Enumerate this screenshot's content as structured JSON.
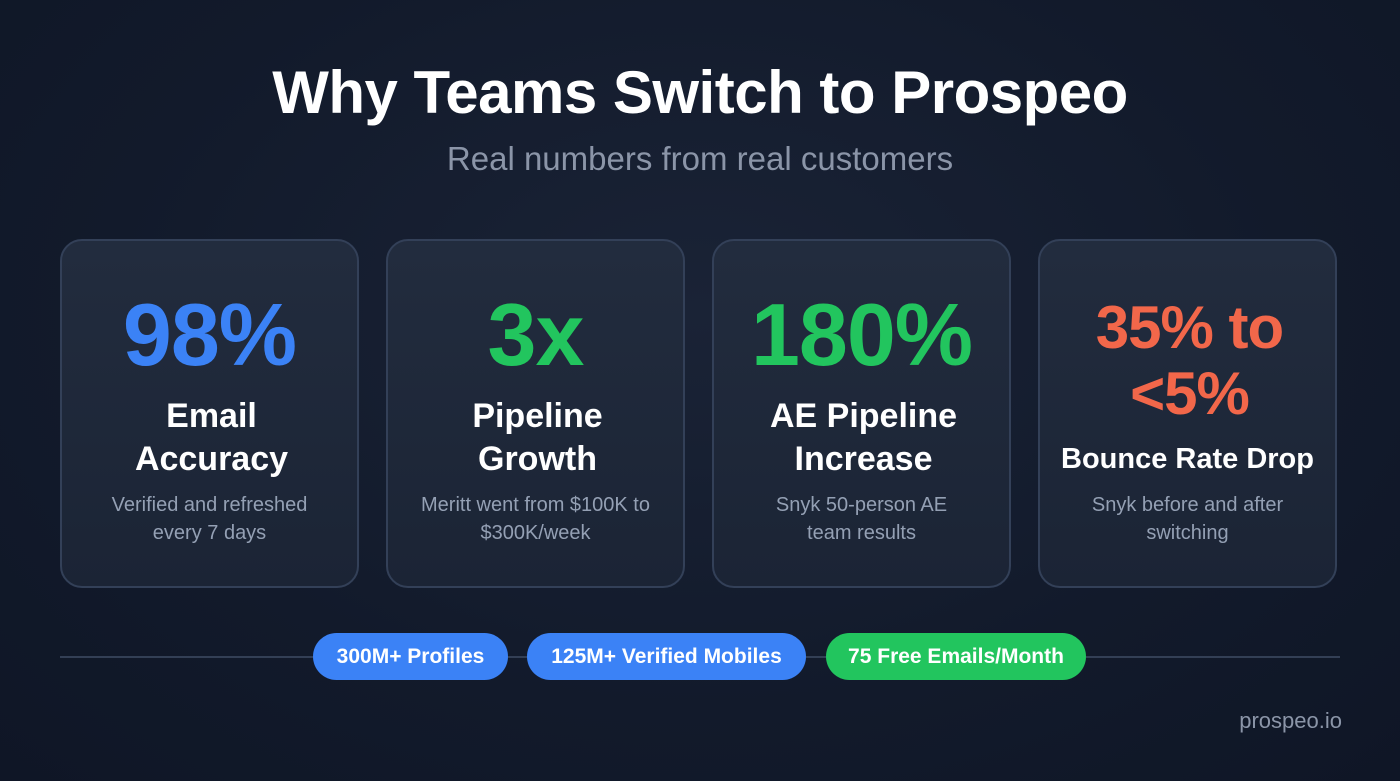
{
  "header": {
    "title": "Why Teams Switch to Prospeo",
    "subtitle": "Real numbers from real customers"
  },
  "colors": {
    "blue": "#3b82f6",
    "green": "#22c55e",
    "orange": "#f2674a"
  },
  "cards": [
    {
      "value": "98%",
      "label": "Email Accuracy",
      "desc": "Verified and refreshed every 7 days",
      "color": "#3b82f6"
    },
    {
      "value": "3x",
      "label": "Pipeline Growth",
      "desc": "Meritt went from $100K to $300K/week",
      "color": "#22c55e"
    },
    {
      "value": "180%",
      "label": "AE Pipeline Increase",
      "desc": "Snyk 50-person AE team results",
      "color": "#22c55e"
    },
    {
      "value": "35% to <5%",
      "label": "Bounce Rate Drop",
      "desc": "Snyk before and after switching",
      "color": "#f2674a"
    }
  ],
  "pills": [
    {
      "label": "300M+ Profiles",
      "color": "#3b82f6"
    },
    {
      "label": "125M+ Verified Mobiles",
      "color": "#3b82f6"
    },
    {
      "label": "75 Free Emails/Month",
      "color": "#22c55e"
    }
  ],
  "footer": {
    "brand": "prospeo.io"
  }
}
